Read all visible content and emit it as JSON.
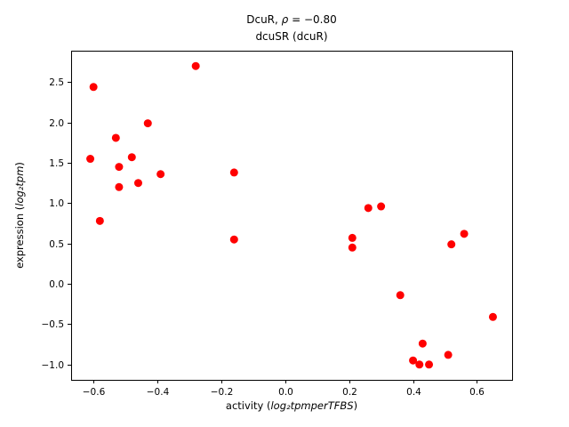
{
  "chart": {
    "title": {
      "prefix": "DcuR, ",
      "rho": "ρ",
      "rest": " = −0.80"
    },
    "subtitle": "dcuSR (dcuR)",
    "xlabel": {
      "prefix": "activity (",
      "math": "log₂tpmperTFBS",
      "suffix": ")"
    },
    "ylabel": {
      "prefix": "expression (",
      "math": "log₂tpm",
      "suffix": ")"
    }
  },
  "chart_data": {
    "type": "scatter",
    "title": "DcuR, ρ = −0.80",
    "subtitle": "dcuSR (dcuR)",
    "xlabel": "activity (log2 tpm per TFBS)",
    "ylabel": "expression (log2 tpm)",
    "correlation_rho": -0.8,
    "marker_color": "#ff0000",
    "marker_radius": 4.5,
    "grid": false,
    "legend": "none",
    "xlim": [
      -0.67,
      0.71
    ],
    "ylim": [
      -1.19,
      2.89
    ],
    "xticks": [
      -0.6,
      -0.4,
      -0.2,
      0.0,
      0.2,
      0.4,
      0.6
    ],
    "xtick_labels": [
      "−0.6",
      "−0.4",
      "−0.2",
      "0.0",
      "0.2",
      "0.4",
      "0.6"
    ],
    "yticks": [
      -1.0,
      -0.5,
      0.0,
      0.5,
      1.0,
      1.5,
      2.0,
      2.5
    ],
    "ytick_labels": [
      "−1.0",
      "−0.5",
      "0.0",
      "0.5",
      "1.0",
      "1.5",
      "2.0",
      "2.5"
    ],
    "points": [
      [
        -0.6,
        2.44
      ],
      [
        -0.61,
        1.55
      ],
      [
        -0.58,
        0.78
      ],
      [
        -0.53,
        1.81
      ],
      [
        -0.52,
        1.45
      ],
      [
        -0.52,
        1.2
      ],
      [
        -0.48,
        1.57
      ],
      [
        -0.46,
        1.25
      ],
      [
        -0.43,
        1.99
      ],
      [
        -0.39,
        1.36
      ],
      [
        -0.28,
        2.7
      ],
      [
        -0.16,
        1.38
      ],
      [
        -0.16,
        0.55
      ],
      [
        0.21,
        0.57
      ],
      [
        0.21,
        0.45
      ],
      [
        0.26,
        0.94
      ],
      [
        0.3,
        0.96
      ],
      [
        0.36,
        -0.14
      ],
      [
        0.4,
        -0.95
      ],
      [
        0.42,
        -1.0
      ],
      [
        0.43,
        -0.74
      ],
      [
        0.45,
        -1.0
      ],
      [
        0.51,
        -0.88
      ],
      [
        0.52,
        0.49
      ],
      [
        0.56,
        0.62
      ],
      [
        0.65,
        -0.41
      ]
    ]
  }
}
